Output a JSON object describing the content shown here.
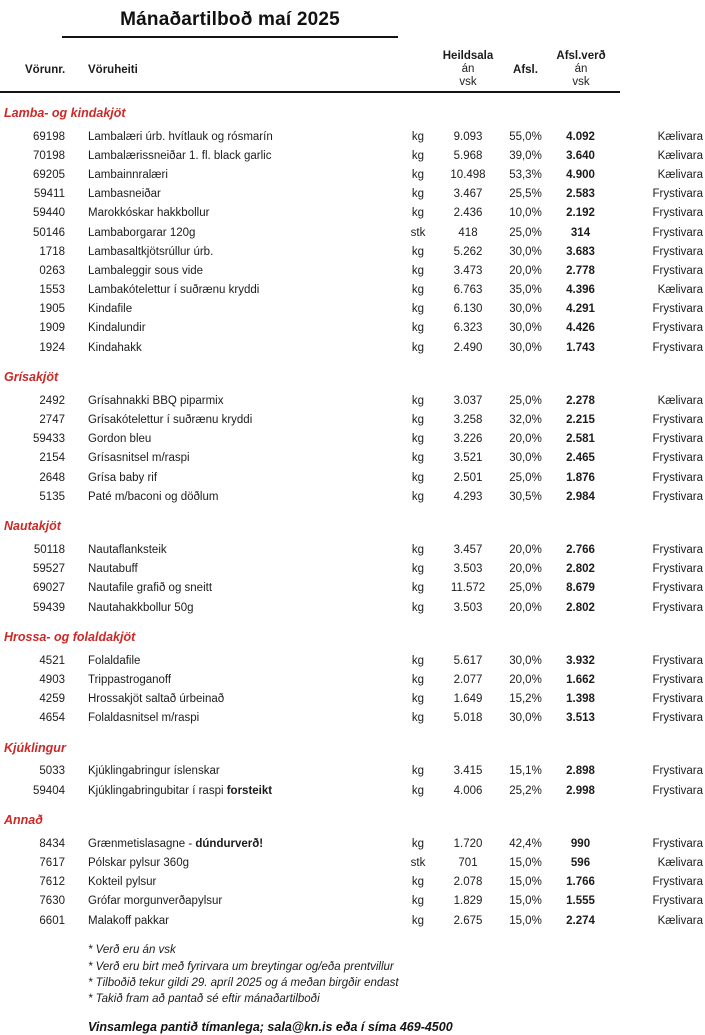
{
  "title": "Mánaðartilboð maí 2025",
  "columns": {
    "vorunr": "Vörunr.",
    "voruheiti": "Vöruheiti",
    "heildsala_bold": "Heildsala",
    "heildsala_rest": " án",
    "heildsala_line2": "vsk",
    "afsl": "Afsl.",
    "afslverd_bold": "Afsl.verð",
    "afslverd_rest": " án",
    "afslverd_line2": "vsk"
  },
  "colors": {
    "section_red": "#cc2927",
    "text": "#1c1c1c"
  },
  "sections": [
    {
      "name": "Lamba- og kindakjöt",
      "rows": [
        {
          "id": "69198",
          "name": "Lambalæri úrb. hvítlauk og rósmarín",
          "unit": "kg",
          "price": "9.093",
          "disc": "55,0%",
          "dprice": "4.092",
          "storage": "Kælivara"
        },
        {
          "id": "70198",
          "name": "Lambalærissneiðar 1. fl. black garlic",
          "unit": "kg",
          "price": "5.968",
          "disc": "39,0%",
          "dprice": "3.640",
          "storage": "Kælivara"
        },
        {
          "id": "69205",
          "name": "Lambainnralæri",
          "unit": "kg",
          "price": "10.498",
          "disc": "53,3%",
          "dprice": "4.900",
          "storage": "Kælivara"
        },
        {
          "id": "59411",
          "name": "Lambasneiðar",
          "unit": "kg",
          "price": "3.467",
          "disc": "25,5%",
          "dprice": "2.583",
          "storage": "Frystivara"
        },
        {
          "id": "59440",
          "name": "Marokkóskar hakkbollur",
          "unit": "kg",
          "price": "2.436",
          "disc": "10,0%",
          "dprice": "2.192",
          "storage": "Frystivara"
        },
        {
          "id": "50146",
          "name": "Lambaborgarar 120g",
          "unit": "stk",
          "price": "418",
          "disc": "25,0%",
          "dprice": "314",
          "storage": "Frystivara"
        },
        {
          "id": "1718",
          "name": "Lambasaltkjötsrúllur úrb.",
          "unit": "kg",
          "price": "5.262",
          "disc": "30,0%",
          "dprice": "3.683",
          "storage": "Frystivara"
        },
        {
          "id": "0263",
          "name": "Lambaleggir sous vide",
          "unit": "kg",
          "price": "3.473",
          "disc": "20,0%",
          "dprice": "2.778",
          "storage": "Frystivara"
        },
        {
          "id": "1553",
          "name": "Lambakótelettur í suðrænu kryddi",
          "unit": "kg",
          "price": "6.763",
          "disc": "35,0%",
          "dprice": "4.396",
          "storage": "Kælivara"
        },
        {
          "id": "1905",
          "name": "Kindafile",
          "unit": "kg",
          "price": "6.130",
          "disc": "30,0%",
          "dprice": "4.291",
          "storage": "Frystivara"
        },
        {
          "id": "1909",
          "name": "Kindalundir",
          "unit": "kg",
          "price": "6.323",
          "disc": "30,0%",
          "dprice": "4.426",
          "storage": "Frystivara"
        },
        {
          "id": "1924",
          "name": "Kindahakk",
          "unit": "kg",
          "price": "2.490",
          "disc": "30,0%",
          "dprice": "1.743",
          "storage": "Frystivara"
        }
      ]
    },
    {
      "name": "Grísakjöt",
      "rows": [
        {
          "id": "2492",
          "name": "Grísahnakki BBQ piparmix",
          "unit": "kg",
          "price": "3.037",
          "disc": "25,0%",
          "dprice": "2.278",
          "storage": "Kælivara"
        },
        {
          "id": "2747",
          "name": "Grísakótelettur í suðrænu kryddi",
          "unit": "kg",
          "price": "3.258",
          "disc": "32,0%",
          "dprice": "2.215",
          "storage": "Frystivara"
        },
        {
          "id": "59433",
          "name": "Gordon bleu",
          "unit": "kg",
          "price": "3.226",
          "disc": "20,0%",
          "dprice": "2.581",
          "storage": "Frystivara"
        },
        {
          "id": "2154",
          "name": "Grísasnitsel m/raspi",
          "unit": "kg",
          "price": "3.521",
          "disc": "30,0%",
          "dprice": "2.465",
          "storage": "Frystivara"
        },
        {
          "id": "2648",
          "name": "Grísa baby rif",
          "unit": "kg",
          "price": "2.501",
          "disc": "25,0%",
          "dprice": "1.876",
          "storage": "Frystivara"
        },
        {
          "id": "5135",
          "name": "Paté m/baconi og döðlum",
          "unit": "kg",
          "price": "4.293",
          "disc": "30,5%",
          "dprice": "2.984",
          "storage": "Frystivara"
        }
      ]
    },
    {
      "name": "Nautakjöt",
      "rows": [
        {
          "id": "50118",
          "name": "Nautaflanksteik",
          "unit": "kg",
          "price": "3.457",
          "disc": "20,0%",
          "dprice": "2.766",
          "storage": "Frystivara"
        },
        {
          "id": "59527",
          "name": "Nautabuff",
          "unit": "kg",
          "price": "3.503",
          "disc": "20,0%",
          "dprice": "2.802",
          "storage": "Frystivara"
        },
        {
          "id": "69027",
          "name": "Nautafile grafið og sneitt",
          "unit": "kg",
          "price": "11.572",
          "disc": "25,0%",
          "dprice": "8.679",
          "storage": "Frystivara"
        },
        {
          "id": "59439",
          "name": "Nautahakkbollur 50g",
          "unit": "kg",
          "price": "3.503",
          "disc": "20,0%",
          "dprice": "2.802",
          "storage": "Frystivara"
        }
      ]
    },
    {
      "name": "Hrossa- og folaldakjöt",
      "rows": [
        {
          "id": "4521",
          "name": "Folaldafile",
          "unit": "kg",
          "price": "5.617",
          "disc": "30,0%",
          "dprice": "3.932",
          "storage": "Frystivara"
        },
        {
          "id": "4903",
          "name": "Trippastroganoff",
          "unit": "kg",
          "price": "2.077",
          "disc": "20,0%",
          "dprice": "1.662",
          "storage": "Frystivara"
        },
        {
          "id": "4259",
          "name": "Hrossakjöt saltað úrbeinað",
          "unit": "kg",
          "price": "1.649",
          "disc": "15,2%",
          "dprice": "1.398",
          "storage": "Frystivara"
        },
        {
          "id": "4654",
          "name": "Folaldasnitsel m/raspi",
          "unit": "kg",
          "price": "5.018",
          "disc": "30,0%",
          "dprice": "3.513",
          "storage": "Frystivara"
        }
      ]
    },
    {
      "name": "Kjúklingur",
      "rows": [
        {
          "id": "5033",
          "name": "Kjúklingabringur íslenskar",
          "unit": "kg",
          "price": "3.415",
          "disc": "15,1%",
          "dprice": "2.898",
          "storage": "Frystivara"
        },
        {
          "id": "59404",
          "name": "Kjúklingabringubitar í raspi ",
          "name_bold": "forsteikt",
          "unit": "kg",
          "price": "4.006",
          "disc": "25,2%",
          "dprice": "2.998",
          "storage": "Frystivara"
        }
      ]
    },
    {
      "name": "Annað",
      "rows": [
        {
          "id": "8434",
          "name": "Grænmetislasagne - ",
          "name_bold": "dúndurverð!",
          "unit": "kg",
          "price": "1.720",
          "disc": "42,4%",
          "dprice": "990",
          "storage": "Frystivara"
        },
        {
          "id": "7617",
          "name": "Pólskar pylsur 360g",
          "unit": "stk",
          "price": "701",
          "disc": "15,0%",
          "dprice": "596",
          "storage": "Kælivara"
        },
        {
          "id": "7612",
          "name": "Kokteil pylsur",
          "unit": "kg",
          "price": "2.078",
          "disc": "15,0%",
          "dprice": "1.766",
          "storage": "Frystivara"
        },
        {
          "id": "7630",
          "name": "Grófar morgunverðapylsur",
          "unit": "kg",
          "price": "1.829",
          "disc": "15,0%",
          "dprice": "1.555",
          "storage": "Frystivara"
        },
        {
          "id": "6601",
          "name": "Malakoff pakkar",
          "unit": "kg",
          "price": "2.675",
          "disc": "15,0%",
          "dprice": "2.274",
          "storage": "Kælivara"
        }
      ]
    }
  ],
  "footnotes": [
    "* Verð eru án vsk",
    "* Verð eru birt með fyrirvara um breytingar og/eða prentvillur",
    "* Tilboðið tekur gildi 29. apríl 2025 og á meðan birgðir endast",
    "* Takið fram að pantað sé eftir mánaðartilboði"
  ],
  "footer": "Vinsamlega pantið tímanlega; sala@kn.is eða í síma 469-4500"
}
